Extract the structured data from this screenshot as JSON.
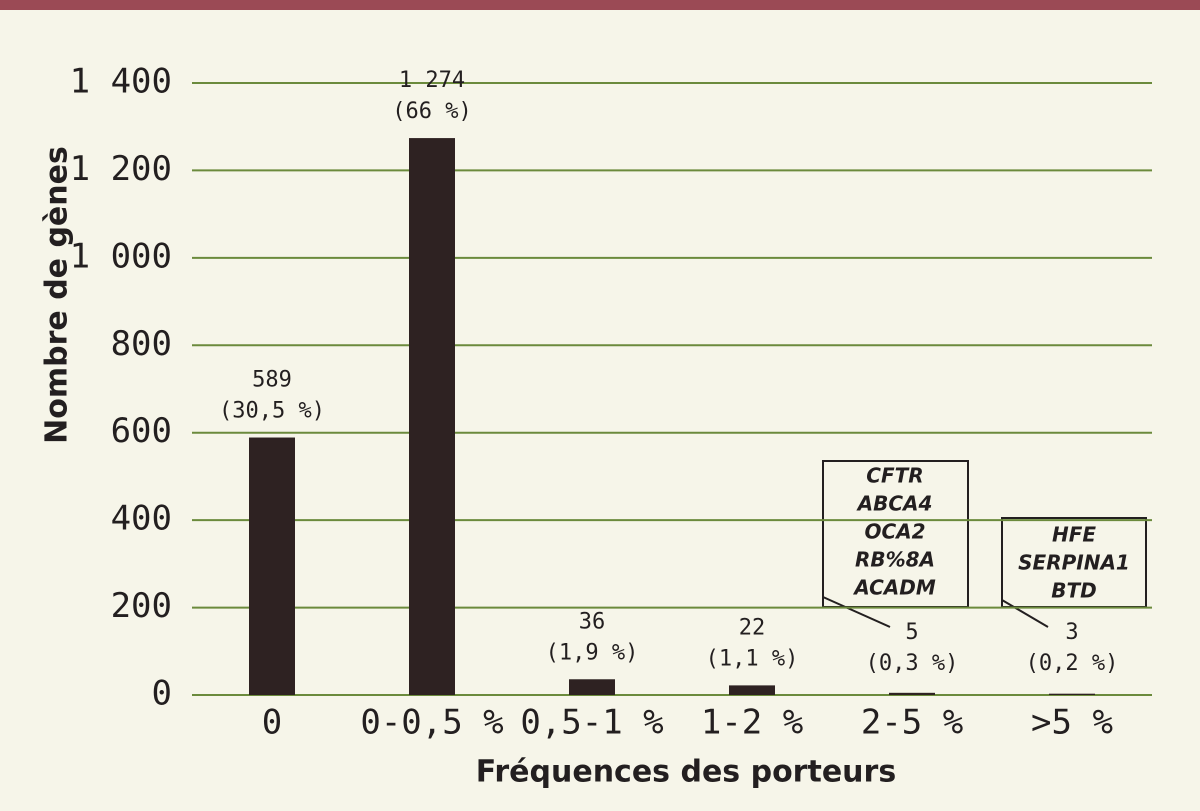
{
  "chart_data": {
    "type": "bar",
    "categories": [
      "0",
      "0-0,5 %",
      "0,5-1 %",
      "1-2 %",
      "2-5 %",
      ">5 %"
    ],
    "values": [
      589,
      1274,
      36,
      22,
      5,
      3
    ],
    "value_labels": [
      "589",
      "1 274",
      "36",
      "22",
      "5",
      "3"
    ],
    "percentage_labels": [
      "(30,5 %)",
      "(66 %)",
      "(1,9 %)",
      "(1,1 %)",
      "(0,3 %)",
      "(0,2 %)"
    ],
    "color": "#2e2222",
    "ylim": [
      0,
      1400
    ],
    "yticks": [
      0,
      200,
      400,
      600,
      800,
      {
        "value": 1000,
        "label": "1 000"
      },
      {
        "value": 1200,
        "label": "1 200"
      },
      {
        "value": 1400,
        "label": "1 400"
      }
    ],
    "grid": true,
    "grid_color": "#6b8a3c",
    "y_label": "Nombre de gènes",
    "x_label": "Fréquences des porteurs",
    "annotations": [
      {
        "category": "2-5 %",
        "genes": [
          "CFTR",
          "ABCA4",
          "OCA2",
          "RB%8A",
          "ACADM"
        ]
      },
      {
        "category": ">5 %",
        "genes": [
          "HFE",
          "SERPINA1",
          "BTD"
        ]
      }
    ]
  }
}
